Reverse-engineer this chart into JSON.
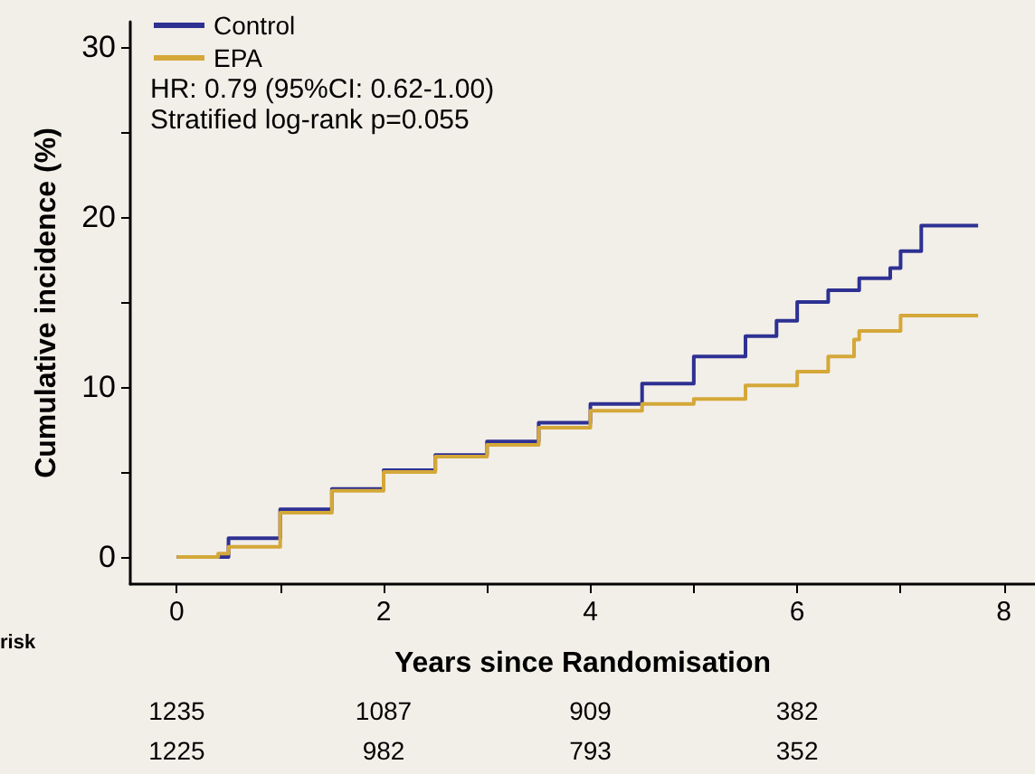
{
  "chart_data": {
    "type": "step",
    "xlabel": "Years since Randomisation",
    "ylabel": "Cumulative incidence (%)",
    "xlim": [
      -0.45,
      8.3
    ],
    "ylim": [
      -1.6,
      31.5
    ],
    "xticks": [
      0,
      {
        "value": 1,
        "label": null
      },
      2,
      {
        "value": 3,
        "label": null
      },
      4,
      {
        "value": 5,
        "label": null
      },
      6,
      {
        "value": 7,
        "label": null
      },
      8
    ],
    "yticks": [
      0,
      {
        "value": 5,
        "label": null
      },
      10,
      {
        "value": 15,
        "label": null
      },
      20,
      {
        "value": 25,
        "label": null
      },
      30
    ],
    "series": [
      {
        "name": "Control",
        "color": "#2e3192",
        "x": [
          0,
          0.5,
          1,
          1.5,
          2,
          2.5,
          3,
          3.5,
          4,
          4.5,
          5,
          5.5,
          5.8,
          6,
          6.3,
          6.6,
          6.9,
          7.0,
          7.2,
          7.75
        ],
        "values": [
          0,
          1.1,
          2.8,
          4.0,
          5.1,
          6.0,
          6.8,
          7.9,
          9.0,
          10.2,
          11.8,
          13.0,
          13.9,
          15.0,
          15.7,
          16.4,
          17.0,
          18.0,
          19.5,
          19.5
        ]
      },
      {
        "name": "EPA",
        "color": "#d4a838",
        "x": [
          0,
          0.4,
          0.5,
          1,
          1.5,
          2,
          2.5,
          3,
          3.5,
          4,
          4.5,
          5,
          5.5,
          6,
          6.3,
          6.55,
          6.6,
          7.0,
          7.75
        ],
        "values": [
          0,
          0.2,
          0.6,
          2.6,
          3.9,
          5.0,
          5.9,
          6.6,
          7.6,
          8.6,
          9.0,
          9.3,
          10.1,
          10.9,
          11.8,
          12.8,
          13.3,
          14.2,
          14.2
        ]
      }
    ],
    "legend": "top left",
    "marker": "none",
    "line_style": "solid",
    "grid": false,
    "annotations": [
      "HR: 0.79 (95%CI: 0.62-1.00)",
      "Stratified log-rank p=0.055",
      "risk",
      "1235",
      "1087",
      "909",
      "382",
      "1225",
      "982",
      "793",
      "352"
    ]
  }
}
